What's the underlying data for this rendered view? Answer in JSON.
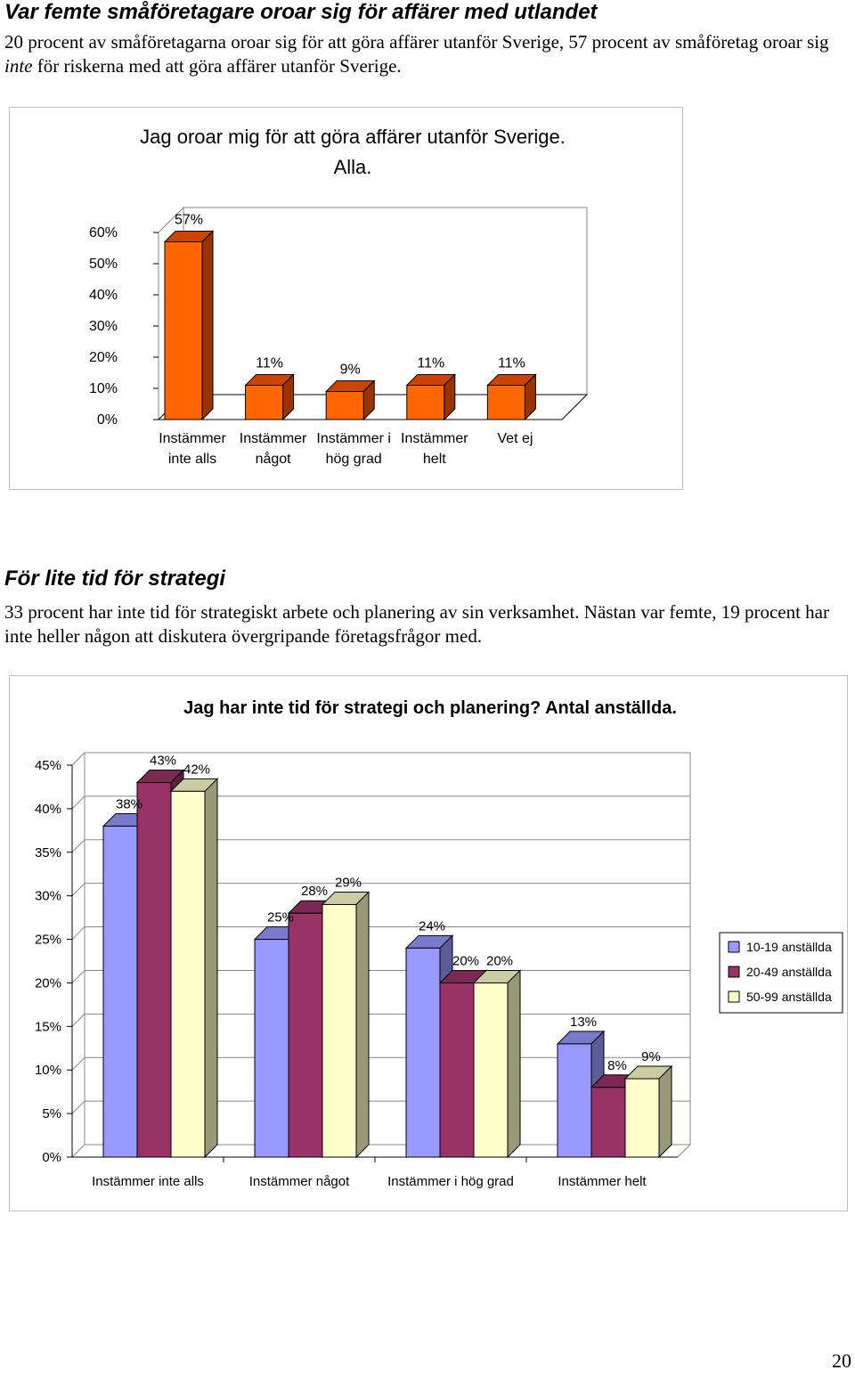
{
  "section1": {
    "heading": "Var femte småföretagare oroar sig för affärer med utlandet",
    "para_part1": "20 procent av småföretagarna oroar sig för att göra affärer utanför Sverige, 57 procent av småföretag oroar sig ",
    "para_em": "inte",
    "para_part2": " för riskerna med att göra affärer utanför Sverige."
  },
  "chart1": {
    "type": "bar",
    "title_line1": "Jag oroar mig för att göra affärer utanför Sverige.",
    "title_line2": "Alla.",
    "categories": [
      [
        "Instämmer",
        "inte alls"
      ],
      [
        "Instämmer",
        "något"
      ],
      [
        "Instämmer i",
        "hög grad"
      ],
      [
        "Instämmer",
        "helt"
      ],
      [
        "Vet ej",
        ""
      ]
    ],
    "values": [
      57,
      11,
      9,
      11,
      11
    ],
    "value_labels": [
      "57%",
      "11%",
      "9%",
      "11%",
      "11%"
    ],
    "yticks": [
      "0%",
      "10%",
      "20%",
      "30%",
      "40%",
      "50%",
      "60%"
    ],
    "ylim": [
      0,
      60
    ],
    "colors": {
      "front": "#ff6600",
      "side": "#993300",
      "top": "#cc4400"
    }
  },
  "section2": {
    "heading": "För lite tid för strategi",
    "para": "33 procent har inte tid för strategiskt arbete och planering av sin verksamhet. Nästan var femte, 19 procent har inte heller någon att diskutera övergripande företagsfrågor med."
  },
  "chart2": {
    "type": "bar",
    "title": "Jag har inte tid för strategi och planering? Antal anställda.",
    "categories": [
      "Instämmer inte alls",
      "Instämmer något",
      "Instämmer i hög grad",
      "Instämmer helt"
    ],
    "series": [
      {
        "name": "10-19 anställda",
        "values": [
          38,
          25,
          24,
          13
        ],
        "labels": [
          "38%",
          "25%",
          "24%",
          "13%"
        ],
        "front": "#9999ff",
        "side": "#5c5c99",
        "top": "#7a7acc"
      },
      {
        "name": "20-49 anställda",
        "values": [
          43,
          28,
          20,
          8
        ],
        "labels": [
          "43%",
          "28%",
          "20%",
          "8%"
        ],
        "front": "#993366",
        "side": "#5c1f3d",
        "top": "#7a2952"
      },
      {
        "name": "50-99 anställda",
        "values": [
          42,
          29,
          20,
          9
        ],
        "labels": [
          "42%",
          "29%",
          "20%",
          "9%"
        ],
        "front": "#ffffcc",
        "side": "#99997a",
        "top": "#cccca3"
      }
    ],
    "yticks": [
      "0%",
      "5%",
      "10%",
      "15%",
      "20%",
      "25%",
      "30%",
      "35%",
      "40%",
      "45%"
    ],
    "ylim": [
      0,
      45
    ],
    "legend_position": "right"
  },
  "page_number": "20"
}
